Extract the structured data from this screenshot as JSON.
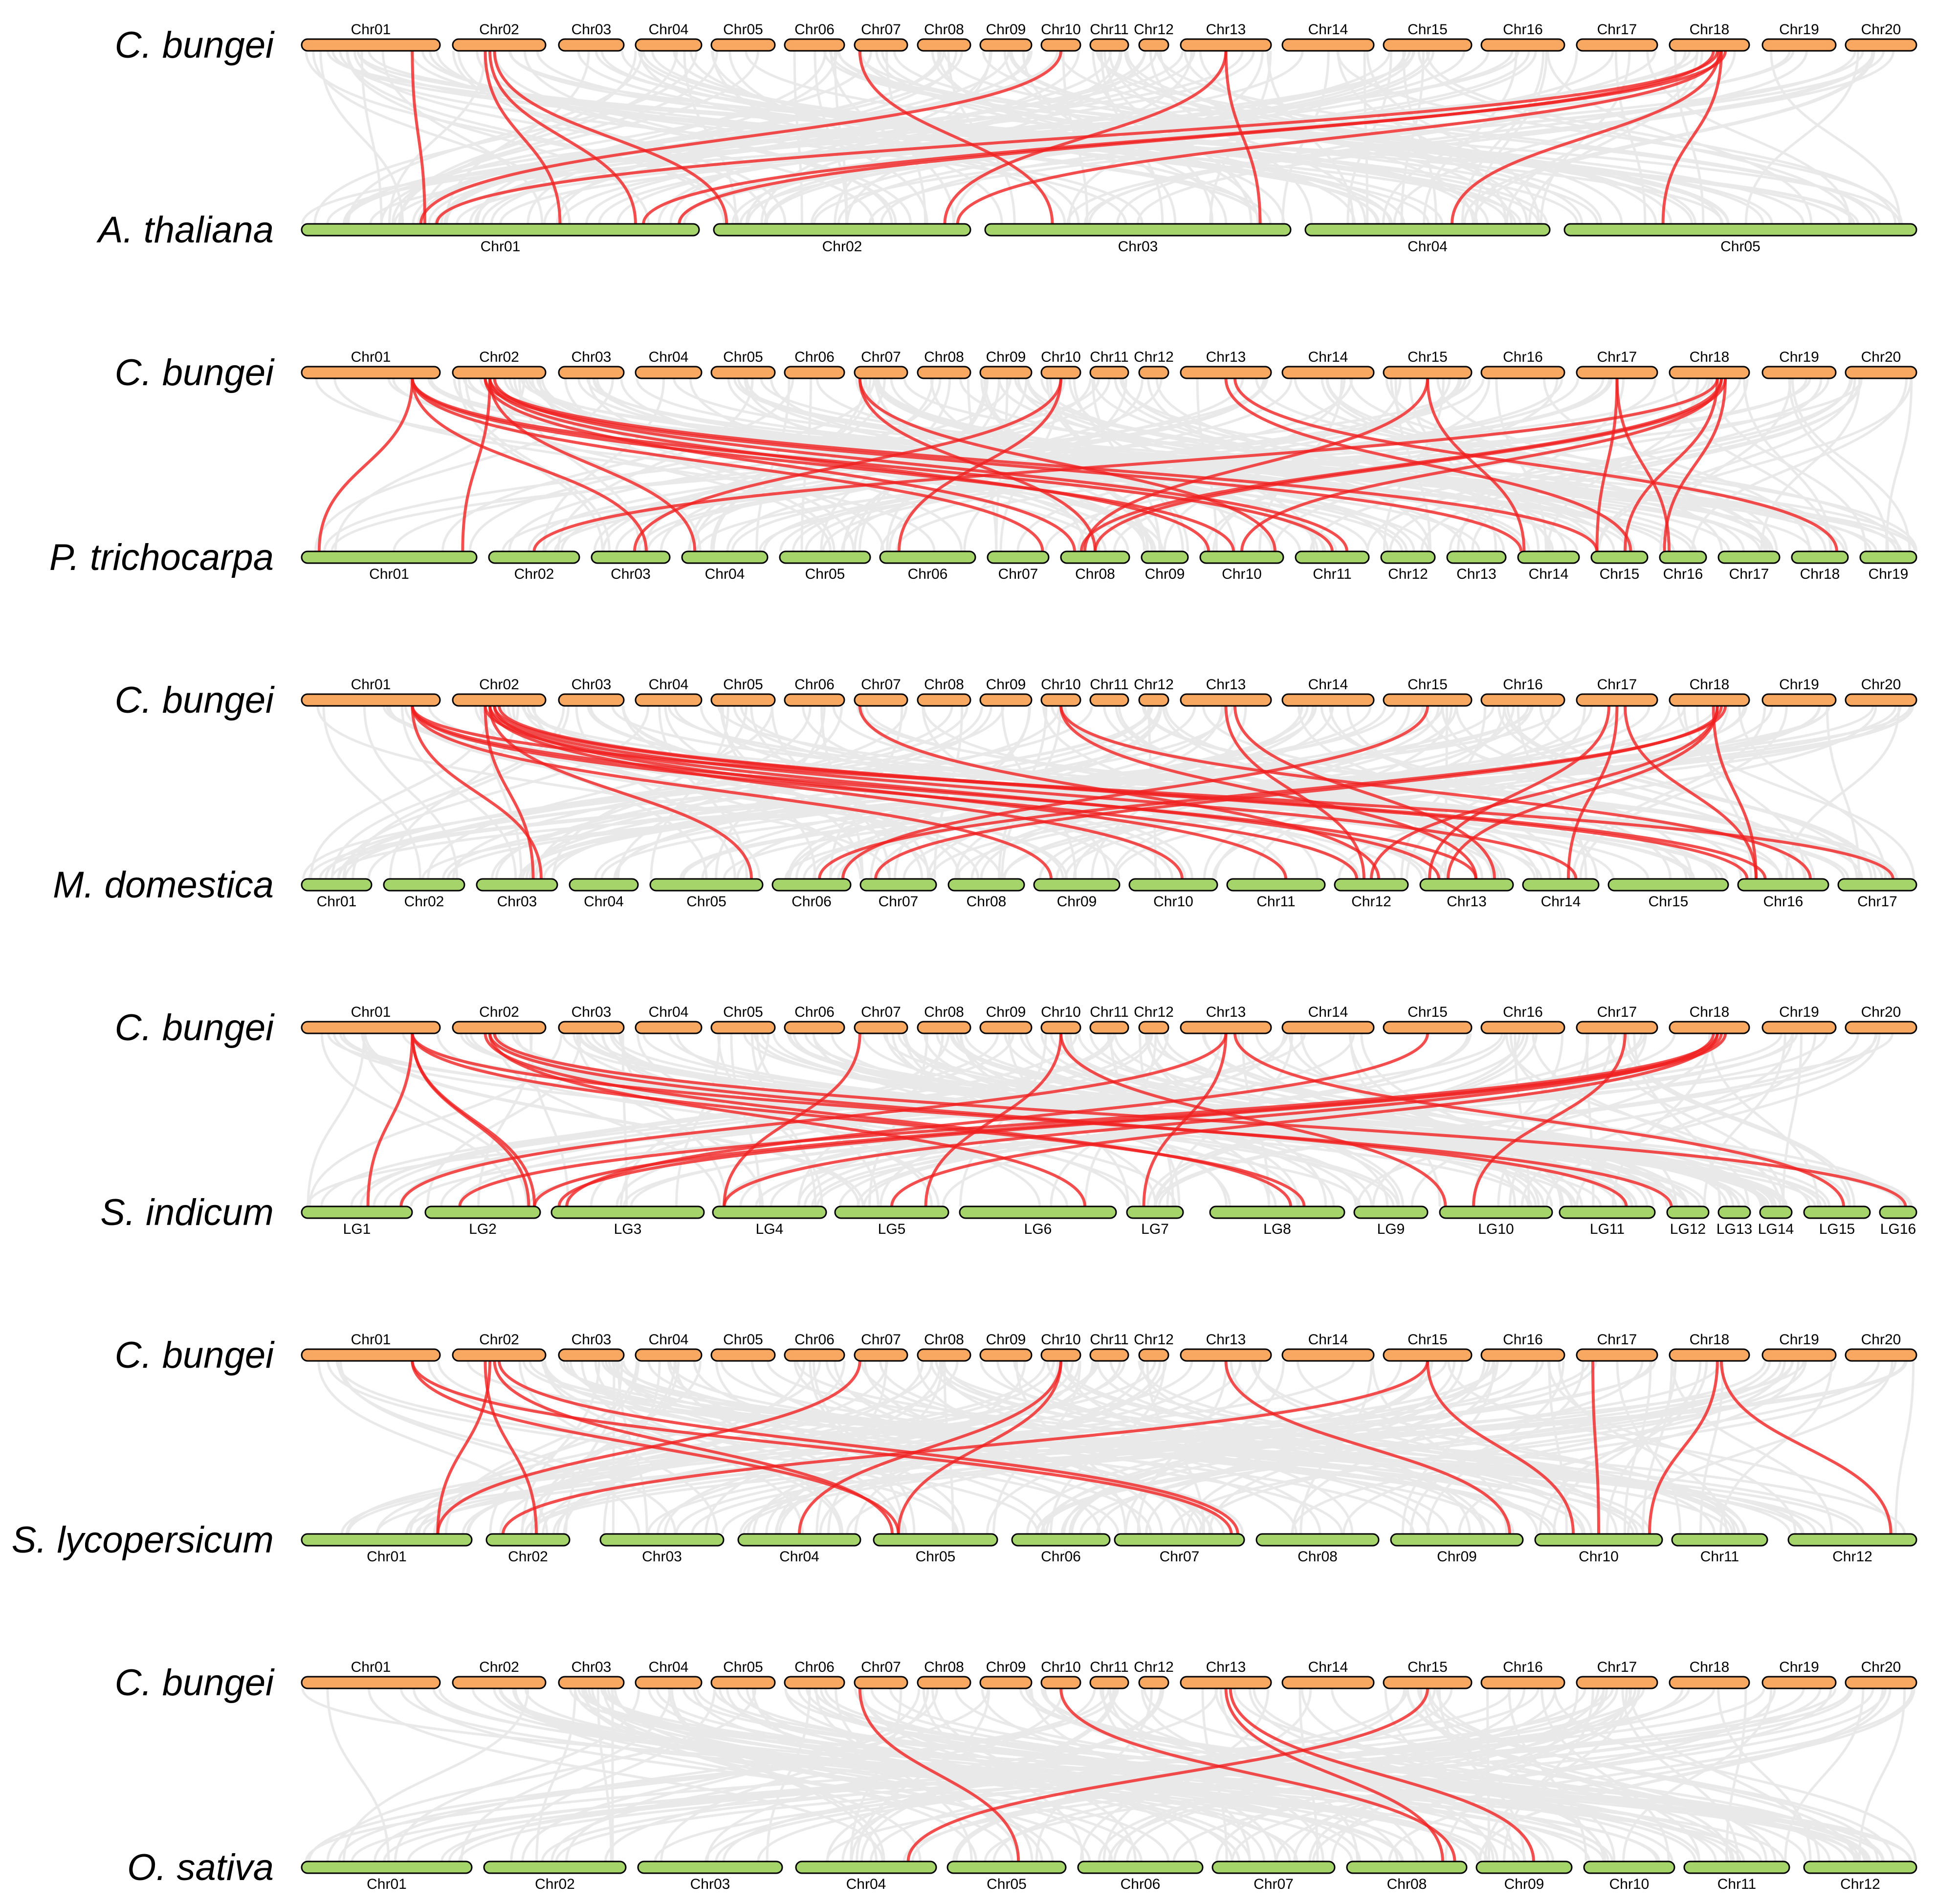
{
  "reference": {
    "species": "C. bungei",
    "chromosomes": [
      "Chr01",
      "Chr02",
      "Chr03",
      "Chr04",
      "Chr05",
      "Chr06",
      "Chr07",
      "Chr08",
      "Chr09",
      "Chr10",
      "Chr11",
      "Chr12",
      "Chr13",
      "Chr14",
      "Chr15",
      "Chr16",
      "Chr17",
      "Chr18",
      "Chr19",
      "Chr20"
    ],
    "color": "#F9A862"
  },
  "comparisons": [
    {
      "species": "A. thaliana",
      "color": "#A5D46A",
      "chromosomes": [
        "Chr01",
        "Chr02",
        "Chr03",
        "Chr04",
        "Chr05"
      ],
      "links": [
        [
          0,
          0.8,
          0,
          0.31
        ],
        [
          1,
          0.35,
          0,
          0.65
        ],
        [
          1,
          0.4,
          0,
          0.84
        ],
        [
          9,
          0.5,
          0,
          0.3
        ],
        [
          17,
          0.6,
          0,
          0.34
        ],
        [
          17,
          0.7,
          0,
          0.86
        ],
        [
          17,
          0.55,
          0,
          0.95
        ],
        [
          1,
          0.45,
          1,
          0.05
        ],
        [
          12,
          0.5,
          1,
          0.9
        ],
        [
          17,
          0.65,
          1,
          0.95
        ],
        [
          6,
          0.1,
          2,
          0.22
        ],
        [
          12,
          0.5,
          2,
          0.9
        ],
        [
          17,
          0.62,
          3,
          0.6
        ],
        [
          17,
          0.65,
          4,
          0.28
        ]
      ]
    },
    {
      "species": "P. trichocarpa",
      "color": "#A5D46A",
      "chromosomes": [
        "Chr01",
        "Chr02",
        "Chr03",
        "Chr04",
        "Chr05",
        "Chr06",
        "Chr07",
        "Chr08",
        "Chr09",
        "Chr10",
        "Chr11",
        "Chr12",
        "Chr13",
        "Chr14",
        "Chr15",
        "Chr16",
        "Chr17",
        "Chr18",
        "Chr19"
      ],
      "links": [
        [
          0,
          0.8,
          0,
          0.1
        ],
        [
          1,
          0.4,
          0,
          0.92
        ],
        [
          0,
          0.8,
          2,
          0.7
        ],
        [
          1,
          0.4,
          3,
          0.15
        ],
        [
          9,
          0.5,
          2,
          0.55
        ],
        [
          17,
          0.6,
          1,
          0.5
        ],
        [
          17,
          0.65,
          7,
          0.3
        ],
        [
          17,
          0.7,
          7,
          0.5
        ],
        [
          0,
          0.8,
          6,
          0.9
        ],
        [
          0,
          0.8,
          9,
          0.4
        ],
        [
          0,
          0.8,
          10,
          0.5
        ],
        [
          1,
          0.35,
          7,
          0.2
        ],
        [
          1,
          0.4,
          9,
          0.1
        ],
        [
          1,
          0.45,
          10,
          0.7
        ],
        [
          1,
          0.4,
          14,
          0.1
        ],
        [
          6,
          0.1,
          7,
          0.5
        ],
        [
          6,
          0.1,
          9,
          0.9
        ],
        [
          9,
          0.5,
          5,
          0.2
        ],
        [
          12,
          0.5,
          14,
          0.7
        ],
        [
          12,
          0.6,
          17,
          0.8
        ],
        [
          14,
          0.5,
          13,
          0.1
        ],
        [
          14,
          0.5,
          7,
          0.35
        ],
        [
          16,
          0.5,
          14,
          0.1
        ],
        [
          16,
          0.5,
          15,
          0.2
        ],
        [
          17,
          0.6,
          14,
          0.6
        ],
        [
          17,
          0.7,
          15,
          0.1
        ],
        [
          17,
          0.65,
          9,
          0.5
        ],
        [
          1,
          0.35,
          13,
          0.05
        ]
      ]
    },
    {
      "species": "M. domestica",
      "color": "#A5D46A",
      "chromosomes": [
        "Chr01",
        "Chr02",
        "Chr03",
        "Chr04",
        "Chr05",
        "Chr06",
        "Chr07",
        "Chr08",
        "Chr09",
        "Chr10",
        "Chr11",
        "Chr12",
        "Chr13",
        "Chr14",
        "Chr15",
        "Chr16",
        "Chr17"
      ],
      "links": [
        [
          0,
          0.8,
          2,
          0.8
        ],
        [
          0,
          0.8,
          8,
          0.2
        ],
        [
          0,
          0.8,
          11,
          0.3
        ],
        [
          0,
          0.8,
          12,
          0.6
        ],
        [
          0,
          0.8,
          16,
          0.7
        ],
        [
          1,
          0.35,
          2,
          0.7
        ],
        [
          1,
          0.4,
          4,
          0.9
        ],
        [
          1,
          0.4,
          9,
          0.6
        ],
        [
          1,
          0.45,
          10,
          0.6
        ],
        [
          1,
          0.35,
          12,
          0.2
        ],
        [
          1,
          0.4,
          13,
          0.7
        ],
        [
          1,
          0.45,
          15,
          0.1
        ],
        [
          1,
          0.5,
          15,
          0.3
        ],
        [
          6,
          0.1,
          11,
          0.6
        ],
        [
          9,
          0.5,
          12,
          0.6
        ],
        [
          9,
          0.5,
          15,
          0.8
        ],
        [
          12,
          0.5,
          11,
          0.4
        ],
        [
          12,
          0.6,
          12,
          0.8
        ],
        [
          14,
          0.5,
          5,
          0.9
        ],
        [
          16,
          0.4,
          12,
          0.1
        ],
        [
          16,
          0.5,
          13,
          0.6
        ],
        [
          16,
          0.6,
          15,
          0.2
        ],
        [
          17,
          0.6,
          12,
          0.3
        ],
        [
          17,
          0.65,
          6,
          0.2
        ],
        [
          17,
          0.7,
          5,
          0.6
        ],
        [
          17,
          0.55,
          15,
          0.2
        ],
        [
          17,
          0.6,
          11,
          0.5
        ]
      ]
    },
    {
      "species": "S. indicum",
      "color": "#A5D46A",
      "chromosomes": [
        "LG1",
        "LG2",
        "LG3",
        "LG4",
        "LG5",
        "LG6",
        "LG7",
        "LG8",
        "LG9",
        "LG10",
        "LG11",
        "LG12",
        "LG13",
        "LG14",
        "LG15",
        "LG16"
      ],
      "links": [
        [
          0,
          0.8,
          0,
          0.6
        ],
        [
          0,
          0.8,
          1,
          0.9
        ],
        [
          0,
          0.8,
          1,
          0.95
        ],
        [
          0,
          0.8,
          7,
          0.7
        ],
        [
          0,
          0.8,
          11,
          0.1
        ],
        [
          1,
          0.35,
          7,
          0.6
        ],
        [
          1,
          0.4,
          10,
          0.7
        ],
        [
          1,
          0.4,
          5,
          0.8
        ],
        [
          1,
          0.45,
          15,
          0.7
        ],
        [
          6,
          0.1,
          3,
          0.1
        ],
        [
          9,
          0.5,
          4,
          0.8
        ],
        [
          9,
          0.5,
          9,
          0.05
        ],
        [
          12,
          0.5,
          0,
          0.9
        ],
        [
          12,
          0.5,
          6,
          0.3
        ],
        [
          12,
          0.6,
          14,
          0.6
        ],
        [
          14,
          0.5,
          2,
          0.1
        ],
        [
          16,
          0.6,
          9,
          0.3
        ],
        [
          17,
          0.6,
          1,
          0.3
        ],
        [
          17,
          0.65,
          1,
          0.95
        ],
        [
          17,
          0.7,
          2,
          0.05
        ],
        [
          17,
          0.55,
          3,
          0.1
        ],
        [
          17,
          0.6,
          4,
          0.5
        ]
      ]
    },
    {
      "species": "S. lycopersicum",
      "color": "#A5D46A",
      "chromosomes": [
        "Chr01",
        "Chr02",
        "Chr03",
        "Chr04",
        "Chr05",
        "Chr06",
        "Chr07",
        "Chr08",
        "Chr09",
        "Chr10",
        "Chr11",
        "Chr12"
      ],
      "links": [
        [
          0,
          0.8,
          4,
          0.2
        ],
        [
          0,
          0.8,
          6,
          0.9
        ],
        [
          1,
          0.35,
          1,
          0.6
        ],
        [
          1,
          0.4,
          0,
          0.8
        ],
        [
          1,
          0.45,
          4,
          0.15
        ],
        [
          1,
          0.5,
          6,
          0.95
        ],
        [
          6,
          0.1,
          0,
          0.8
        ],
        [
          9,
          0.5,
          3,
          0.5
        ],
        [
          9,
          0.5,
          4,
          0.2
        ],
        [
          12,
          0.5,
          8,
          0.9
        ],
        [
          14,
          0.5,
          1,
          0.2
        ],
        [
          14,
          0.5,
          9,
          0.3
        ],
        [
          16,
          0.2,
          9,
          0.5
        ],
        [
          17,
          0.6,
          9,
          0.9
        ],
        [
          17,
          0.65,
          11,
          0.8
        ]
      ]
    },
    {
      "species": "O. sativa",
      "color": "#A5D46A",
      "chromosomes": [
        "Chr01",
        "Chr02",
        "Chr03",
        "Chr04",
        "Chr05",
        "Chr06",
        "Chr07",
        "Chr08",
        "Chr09",
        "Chr10",
        "Chr11",
        "Chr12"
      ],
      "links": [
        [
          6,
          0.1,
          4,
          0.6
        ],
        [
          9,
          0.5,
          7,
          0.9
        ],
        [
          12,
          0.5,
          7,
          0.8
        ],
        [
          12,
          0.55,
          8,
          0.6
        ],
        [
          14,
          0.5,
          3,
          0.8
        ]
      ]
    }
  ]
}
